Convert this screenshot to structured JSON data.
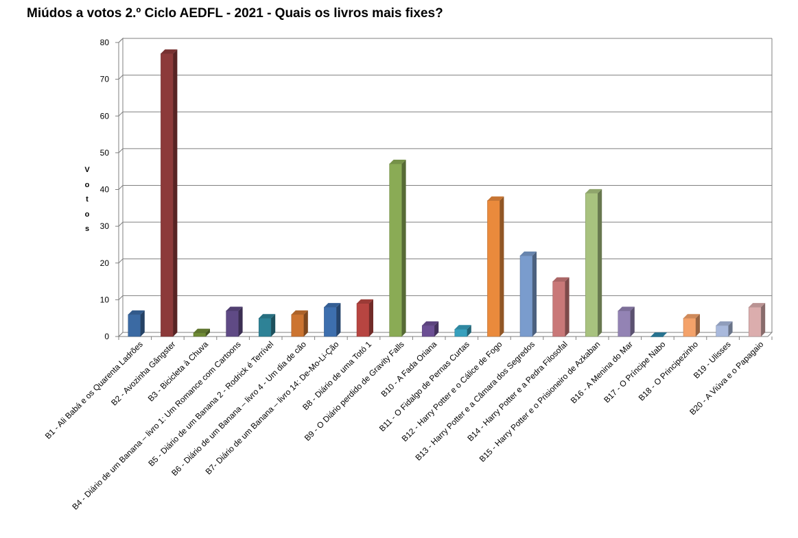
{
  "chart_data": {
    "type": "bar",
    "title": "Miúdos a votos 2.º Ciclo AEDFL  - 2021  - Quais os livros mais fixes?",
    "ylabel": "Votos",
    "xlabel": "",
    "ylim": [
      0,
      80
    ],
    "yticks": [
      "0",
      "10",
      "20",
      "30",
      "40",
      "50",
      "60",
      "70",
      "80"
    ],
    "grid": true,
    "legend": "none",
    "categories": [
      "B1 - Ali Babá e os Quarenta Ladrões",
      "B2 - Avozinha Gângster",
      "B3 - Bicicleta à Chuva",
      "B4 - Diário de um Banana – livro 1: Um Romance com Cartoons",
      "B5 - Diário de um Banana 2 - Rodrick é Terrível",
      "B6 - Diário de um Banana – livro 4 - Um dia de cão",
      "B7- Diário de um Banana – livro 14: De-Mo-Li-Ção",
      "B8 - Diário de uma Totó 1",
      "B9 - O Diário perdido de Gravity Falls",
      "B10 - A Fada Oriana",
      "B11 - O Fidalgo de Pernas Curtas",
      "B12 - Harry Potter e o Cálice de Fogo",
      "B13 - Harry Potter e a Câmara dos Segredos",
      "B14 - Harry Potter e a Pedra Filosofal",
      "B15 - Harry Potter e o Prisioneiro de Azkaban",
      "B16 - A Menina do Mar",
      "B17 - O Príncipe Nabo",
      "B18 - O Principezinho",
      "B19 - Ulisses",
      "B20 - A Viúva e o Papagaio"
    ],
    "values": [
      6,
      77,
      1,
      7,
      5,
      6,
      8,
      9,
      47,
      3,
      2,
      37,
      22,
      15,
      39,
      7,
      0,
      5,
      3,
      8
    ],
    "colors": [
      "#3b6aa3",
      "#8c3a3a",
      "#6f8a35",
      "#5f4a85",
      "#2e8296",
      "#cc7430",
      "#3d6fae",
      "#b74541",
      "#8aab55",
      "#6c4f94",
      "#37a0bd",
      "#ea8a3c",
      "#7a9ccd",
      "#c97878",
      "#a8c27f",
      "#9383b4",
      "#2e86a8",
      "#f4a26a",
      "#a9b9dc",
      "#dbadad"
    ]
  }
}
